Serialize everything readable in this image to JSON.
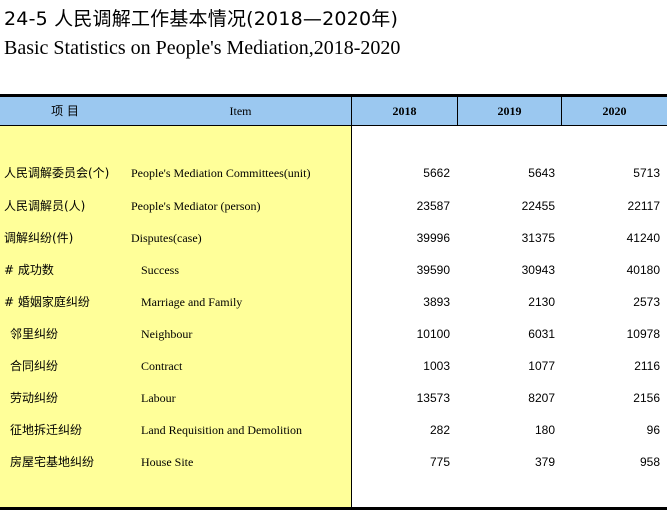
{
  "title": {
    "cn": "24-5   人民调解工作基本情况(2018—2020年)",
    "en": "Basic Statistics on People's Mediation,2018-2020"
  },
  "header": {
    "item_cn": "项  目",
    "item_en": "Item",
    "years": [
      "2018",
      "2019",
      "2020"
    ]
  },
  "rows": [
    {
      "cn": "人民调解委员会(个)",
      "en": "People's Mediation Committees(unit)",
      "values": [
        "5662",
        "5643",
        "5713"
      ]
    },
    {
      "cn": "人民调解员(人)",
      "en": "People's Mediator (person)",
      "values": [
        "23587",
        "22455",
        "22117"
      ]
    },
    {
      "cn": "调解纠纷(件)",
      "en": "Disputes(case)",
      "values": [
        "39996",
        "31375",
        "41240"
      ]
    },
    {
      "cn": "# 成功数",
      "en": "Success",
      "values": [
        "39590",
        "30943",
        "40180"
      ]
    },
    {
      "cn": "# 婚姻家庭纠纷",
      "en": "Marriage and Family",
      "values": [
        "3893",
        "2130",
        "2573"
      ]
    },
    {
      "cn": "邻里纠纷",
      "en": "Neighbour",
      "values": [
        "10100",
        "6031",
        "10978"
      ]
    },
    {
      "cn": "合同纠纷",
      "en": "Contract",
      "values": [
        "1003",
        "1077",
        "2116"
      ]
    },
    {
      "cn": "劳动纠纷",
      "en": "Labour",
      "values": [
        "13573",
        "8207",
        "2156"
      ]
    },
    {
      "cn": "征地拆迁纠纷",
      "en": "Land Requisition and Demolition",
      "values": [
        "282",
        "180",
        "96"
      ]
    },
    {
      "cn": "房屋宅基地纠纷",
      "en": "House Site",
      "values": [
        "775",
        "379",
        "958"
      ]
    }
  ]
}
